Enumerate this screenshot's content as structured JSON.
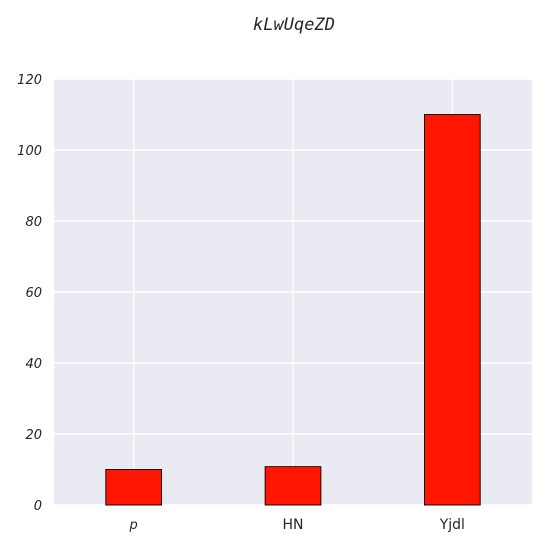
{
  "chart_data": {
    "type": "bar",
    "title": "kLwUqeZD",
    "xlabel": "",
    "ylabel": "",
    "categories": [
      "p",
      "HN",
      "Yjdl"
    ],
    "values": [
      10,
      10.8,
      110
    ],
    "ylim": [
      0,
      120
    ],
    "yticks": [
      "0",
      "20",
      "40",
      "60",
      "80",
      "100",
      "120"
    ],
    "grid": true,
    "legend": "none",
    "colors": {
      "bar": "#fe1600",
      "bar_edge": "#000000",
      "plot_background": "#eaeaf2",
      "grid": "#ffffff",
      "text": "#262626"
    }
  }
}
